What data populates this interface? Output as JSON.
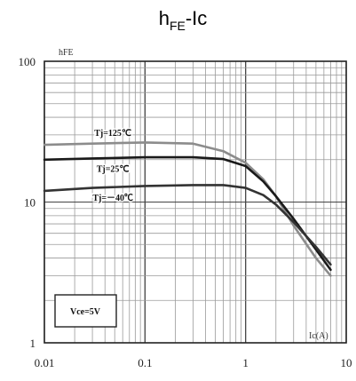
{
  "chart_data": {
    "type": "line",
    "title": {
      "base": "h",
      "sub": "FE",
      "rest": "-Ic"
    },
    "ylabel": "hFE",
    "xlabel": "Ic(A)",
    "x_scale": "log",
    "y_scale": "log",
    "xlim": [
      0.01,
      10
    ],
    "ylim": [
      1,
      100
    ],
    "xticks": [
      {
        "value": 0.01,
        "label": "0.01"
      },
      {
        "value": 0.1,
        "label": "0.1"
      },
      {
        "value": 1,
        "label": "1"
      },
      {
        "value": 10,
        "label": "10"
      }
    ],
    "yticks": [
      {
        "value": 1,
        "label": "1"
      },
      {
        "value": 10,
        "label": "10"
      },
      {
        "value": 100,
        "label": "100"
      }
    ],
    "grid": true,
    "annotation": "Vce=5V",
    "series": [
      {
        "name": "Tj=125℃",
        "color": "#8c8c8c",
        "x": [
          0.01,
          0.03,
          0.1,
          0.3,
          0.6,
          1.0,
          1.5,
          2.0,
          3.0,
          5.0,
          7.0
        ],
        "y": [
          25.5,
          26,
          26.5,
          26,
          23,
          19,
          14.5,
          11,
          6.8,
          4.0,
          3.0
        ]
      },
      {
        "name": "Tj=25℃",
        "color": "#1a1a1a",
        "x": [
          0.01,
          0.03,
          0.1,
          0.3,
          0.6,
          1.0,
          1.5,
          2.0,
          3.0,
          5.0,
          7.0
        ],
        "y": [
          20,
          20.4,
          20.8,
          20.8,
          20.2,
          18,
          14,
          11,
          7.6,
          4.6,
          3.3
        ]
      },
      {
        "name": "Tj=－40℃",
        "color": "#333333",
        "x": [
          0.01,
          0.03,
          0.1,
          0.3,
          0.6,
          1.0,
          1.5,
          2.0,
          3.0,
          5.0,
          7.0
        ],
        "y": [
          12,
          12.6,
          13,
          13.2,
          13.2,
          12.6,
          11.2,
          9.6,
          7.2,
          4.8,
          3.6
        ]
      }
    ]
  }
}
